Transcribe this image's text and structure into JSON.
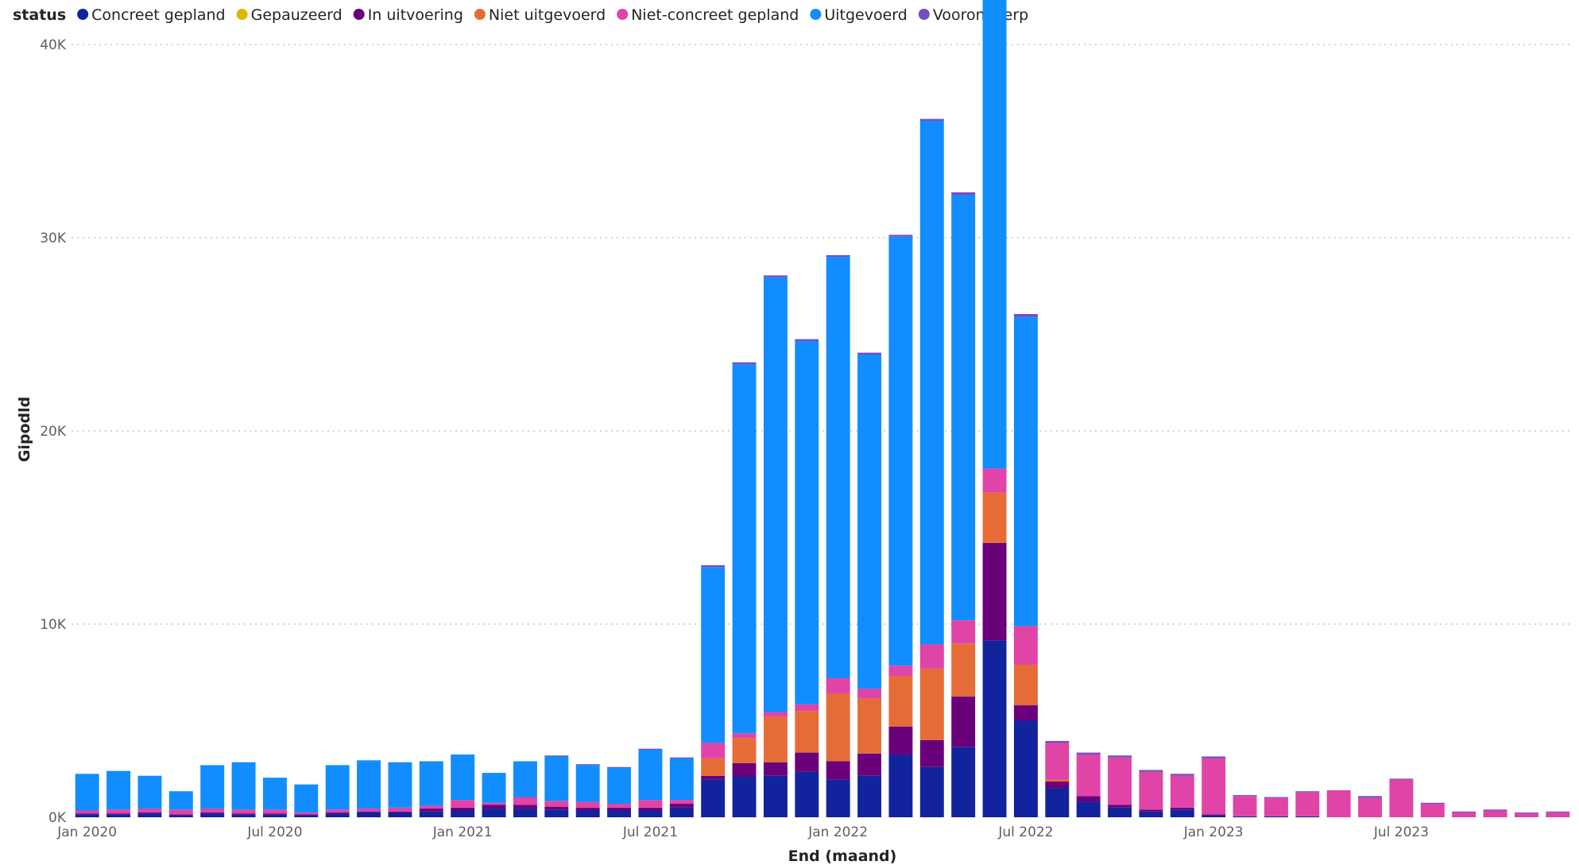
{
  "chart_data": {
    "type": "bar",
    "stacked": true,
    "legend": {
      "title": "status",
      "position": "top-left"
    },
    "xlabel": "End (maand)",
    "ylabel": "Gipodld",
    "ylim": [
      0,
      40000
    ],
    "y_ticks": [
      {
        "value": 0,
        "label": "0K"
      },
      {
        "value": 10000,
        "label": "10K"
      },
      {
        "value": 20000,
        "label": "20K"
      },
      {
        "value": 30000,
        "label": "30K"
      },
      {
        "value": 40000,
        "label": "40K"
      }
    ],
    "grid": true,
    "x_ticks": [
      {
        "index": 0,
        "label": "Jan 2020"
      },
      {
        "index": 6,
        "label": "Jul 2020"
      },
      {
        "index": 12,
        "label": "Jan 2021"
      },
      {
        "index": 18,
        "label": "Jul 2021"
      },
      {
        "index": 24,
        "label": "Jan 2022"
      },
      {
        "index": 30,
        "label": "Jul 2022"
      },
      {
        "index": 36,
        "label": "Jan 2023"
      },
      {
        "index": 42,
        "label": "Jul 2023"
      }
    ],
    "categories": [
      "2020-01",
      "2020-02",
      "2020-03",
      "2020-04",
      "2020-05",
      "2020-06",
      "2020-07",
      "2020-08",
      "2020-09",
      "2020-10",
      "2020-11",
      "2020-12",
      "2021-01",
      "2021-02",
      "2021-03",
      "2021-04",
      "2021-05",
      "2021-06",
      "2021-07",
      "2021-08",
      "2021-09",
      "2021-10",
      "2021-11",
      "2021-12",
      "2022-01",
      "2022-02",
      "2022-03",
      "2022-04",
      "2022-05",
      "2022-06",
      "2022-07",
      "2022-08",
      "2022-09",
      "2022-10",
      "2022-11",
      "2022-12",
      "2023-01",
      "2023-02",
      "2023-03",
      "2023-04",
      "2023-05",
      "2023-06",
      "2023-07",
      "2023-08",
      "2023-09",
      "2023-10",
      "2023-11",
      "2023-12"
    ],
    "series": [
      {
        "name": "Concreet gepland",
        "color": "#12239E",
        "values": [
          150,
          150,
          200,
          100,
          200,
          150,
          150,
          100,
          200,
          250,
          250,
          300,
          350,
          450,
          450,
          400,
          350,
          350,
          350,
          500,
          1950,
          2100,
          2150,
          2350,
          1950,
          2150,
          3250,
          2600,
          3650,
          9150,
          5000,
          1500,
          800,
          500,
          300,
          400,
          100,
          50,
          50,
          50,
          0,
          0,
          0,
          0,
          0,
          0,
          0,
          0
        ]
      },
      {
        "name": "Gepauzeerd",
        "color": "#E0B500",
        "values": [
          0,
          0,
          0,
          0,
          0,
          0,
          0,
          0,
          0,
          0,
          0,
          0,
          0,
          0,
          0,
          0,
          0,
          0,
          0,
          0,
          0,
          0,
          0,
          0,
          0,
          0,
          0,
          0,
          0,
          0,
          0,
          0,
          0,
          0,
          0,
          0,
          0,
          0,
          0,
          0,
          0,
          0,
          0,
          0,
          0,
          0,
          0,
          0
        ]
      },
      {
        "name": "In uitvoering",
        "color": "#6B007B",
        "values": [
          50,
          50,
          50,
          50,
          50,
          50,
          50,
          50,
          50,
          50,
          50,
          150,
          150,
          200,
          200,
          150,
          150,
          150,
          150,
          200,
          200,
          700,
          700,
          1000,
          950,
          1150,
          1450,
          1400,
          2600,
          5050,
          800,
          350,
          300,
          150,
          100,
          100,
          50,
          0,
          0,
          0,
          0,
          0,
          0,
          0,
          0,
          0,
          0,
          0
        ]
      },
      {
        "name": "Niet uitgevoerd",
        "color": "#E66C37",
        "values": [
          0,
          0,
          0,
          0,
          0,
          0,
          0,
          0,
          0,
          0,
          0,
          0,
          0,
          0,
          0,
          0,
          0,
          0,
          0,
          0,
          900,
          1300,
          2350,
          2150,
          3500,
          2850,
          2600,
          3700,
          2750,
          2600,
          2100,
          100,
          0,
          0,
          0,
          0,
          0,
          0,
          0,
          0,
          0,
          0,
          0,
          0,
          0,
          0,
          0,
          0
        ]
      },
      {
        "name": "Niet-concreet gepland",
        "color": "#E044A7",
        "values": [
          150,
          200,
          200,
          250,
          200,
          200,
          200,
          100,
          150,
          150,
          200,
          150,
          400,
          100,
          400,
          300,
          300,
          200,
          400,
          200,
          800,
          250,
          250,
          350,
          800,
          500,
          550,
          1250,
          1200,
          1250,
          2000,
          1900,
          2150,
          2450,
          1950,
          1650,
          2900,
          1050,
          950,
          1250,
          1400,
          1000,
          1950,
          700,
          250,
          350,
          200,
          250
        ]
      },
      {
        "name": "Uitgevoerd",
        "color": "#118DFF",
        "values": [
          1900,
          2000,
          1700,
          950,
          2250,
          2450,
          1650,
          1450,
          2300,
          2500,
          2350,
          2300,
          2350,
          1550,
          1850,
          2300,
          1900,
          1850,
          2600,
          2150,
          9100,
          19100,
          22500,
          18800,
          21800,
          17300,
          22200,
          27100,
          22000,
          25200,
          16000,
          0,
          0,
          0,
          0,
          0,
          0,
          0,
          0,
          0,
          0,
          0,
          0,
          0,
          0,
          0,
          0,
          0
        ]
      },
      {
        "name": "Voorontwerp",
        "color": "#744EC2",
        "values": [
          0,
          0,
          0,
          0,
          0,
          0,
          0,
          0,
          0,
          0,
          0,
          0,
          0,
          0,
          0,
          50,
          50,
          50,
          50,
          50,
          100,
          100,
          100,
          100,
          100,
          100,
          100,
          100,
          150,
          100,
          150,
          100,
          100,
          100,
          100,
          100,
          100,
          50,
          50,
          50,
          0,
          100,
          50,
          50,
          50,
          50,
          50,
          50
        ]
      }
    ]
  }
}
